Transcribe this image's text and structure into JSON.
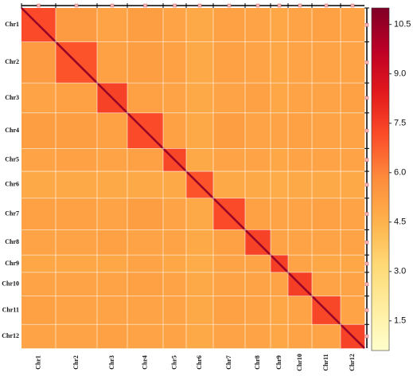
{
  "chart_data": {
    "type": "heatmap",
    "categories": [
      "Chr1",
      "Chr2",
      "Chr3",
      "Chr4",
      "Chr5",
      "Chr6",
      "Chr7",
      "Chr8",
      "Chr9",
      "Chr10",
      "Chr11",
      "Chr12"
    ],
    "lengths": [
      43,
      52,
      38,
      45,
      29,
      34,
      40,
      32,
      22,
      30,
      36,
      30
    ],
    "matrix": [
      [
        7.2,
        5.3,
        5.0,
        5.2,
        5.0,
        4.8,
        5.1,
        5.0,
        4.9,
        5.0,
        5.1,
        5.0
      ],
      [
        5.3,
        7.0,
        5.1,
        5.2,
        5.1,
        4.8,
        5.1,
        5.0,
        4.9,
        5.0,
        5.0,
        5.0
      ],
      [
        5.0,
        5.1,
        7.4,
        5.1,
        5.0,
        4.8,
        5.0,
        5.1,
        4.9,
        5.0,
        5.0,
        5.1
      ],
      [
        5.2,
        5.2,
        5.1,
        7.2,
        5.1,
        4.8,
        5.2,
        5.0,
        5.0,
        5.1,
        5.0,
        5.0
      ],
      [
        5.0,
        5.1,
        5.0,
        5.1,
        7.3,
        4.8,
        5.0,
        5.0,
        4.9,
        5.0,
        5.0,
        5.0
      ],
      [
        4.8,
        4.8,
        4.8,
        4.8,
        4.8,
        7.0,
        4.8,
        4.8,
        4.7,
        4.8,
        4.8,
        4.8
      ],
      [
        5.1,
        5.1,
        5.0,
        5.2,
        5.0,
        4.8,
        7.2,
        5.1,
        5.0,
        5.0,
        5.1,
        5.0
      ],
      [
        5.0,
        5.0,
        5.1,
        5.0,
        5.0,
        4.8,
        5.1,
        7.4,
        5.0,
        5.0,
        5.0,
        5.0
      ],
      [
        4.9,
        4.9,
        4.9,
        5.0,
        4.9,
        4.7,
        5.0,
        5.0,
        7.5,
        5.0,
        4.9,
        4.9
      ],
      [
        5.0,
        5.0,
        5.0,
        5.1,
        5.0,
        4.8,
        5.0,
        5.0,
        5.0,
        7.5,
        5.0,
        5.0
      ],
      [
        5.1,
        5.0,
        5.0,
        5.0,
        5.0,
        4.8,
        5.1,
        5.0,
        4.9,
        5.0,
        7.3,
        5.0
      ],
      [
        5.0,
        5.0,
        5.1,
        5.0,
        5.0,
        4.8,
        5.0,
        5.0,
        4.9,
        5.0,
        5.0,
        7.4
      ]
    ],
    "diagonal": 10.5,
    "colormap": [
      "#ffffcc",
      "#ffeda0",
      "#fed976",
      "#feb24c",
      "#fd8d3c",
      "#fc4e2a",
      "#e31a1c",
      "#bd0026",
      "#800026"
    ],
    "clim": [
      0.6,
      11
    ],
    "cticks": [
      1.5,
      {
        "value": 3,
        "label": "3.0"
      },
      4.5,
      {
        "value": 6,
        "label": "6.0"
      },
      7.5,
      {
        "value": 9,
        "label": "9.0"
      },
      10.5
    ]
  }
}
